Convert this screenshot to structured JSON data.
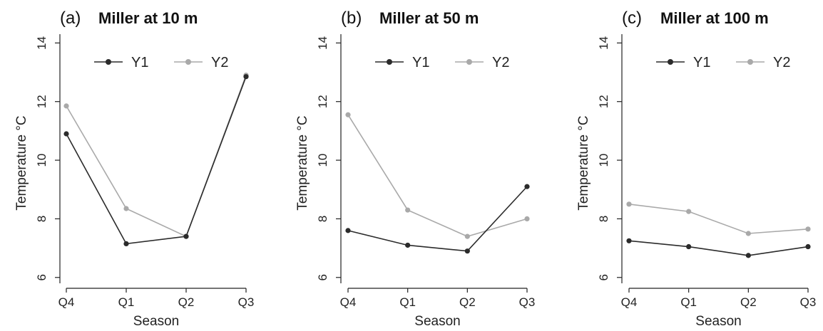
{
  "chart_data": [
    {
      "type": "line",
      "panel_label": "(a)",
      "title": "Miller at 10 m",
      "xlabel": "Season",
      "ylabel": "Temperature °C",
      "categories": [
        "Q4",
        "Q1",
        "Q2",
        "Q3"
      ],
      "ylim": [
        5.8,
        14.3
      ],
      "yticks": [
        6,
        8,
        10,
        12,
        14
      ],
      "legend_position": "top",
      "series": [
        {
          "name": "Y1",
          "color": "#2b2b2b",
          "values": [
            10.9,
            7.15,
            7.4,
            12.85
          ]
        },
        {
          "name": "Y2",
          "color": "#a9a9a9",
          "values": [
            11.85,
            8.35,
            7.4,
            12.9
          ]
        }
      ]
    },
    {
      "type": "line",
      "panel_label": "(b)",
      "title": "Miller at 50 m",
      "xlabel": "Season",
      "ylabel": "Temperature °C",
      "categories": [
        "Q4",
        "Q1",
        "Q2",
        "Q3"
      ],
      "ylim": [
        5.8,
        14.3
      ],
      "yticks": [
        6,
        8,
        10,
        12,
        14
      ],
      "legend_position": "top",
      "series": [
        {
          "name": "Y1",
          "color": "#2b2b2b",
          "values": [
            7.6,
            7.1,
            6.9,
            9.1
          ]
        },
        {
          "name": "Y2",
          "color": "#a9a9a9",
          "values": [
            11.55,
            8.3,
            7.4,
            8.0
          ]
        }
      ]
    },
    {
      "type": "line",
      "panel_label": "(c)",
      "title": "Miller at 100 m",
      "xlabel": "Season",
      "ylabel": "Temperature °C",
      "categories": [
        "Q4",
        "Q1",
        "Q2",
        "Q3"
      ],
      "ylim": [
        5.8,
        14.3
      ],
      "yticks": [
        6,
        8,
        10,
        12,
        14
      ],
      "legend_position": "top",
      "series": [
        {
          "name": "Y1",
          "color": "#2b2b2b",
          "values": [
            7.25,
            7.05,
            6.75,
            7.05
          ]
        },
        {
          "name": "Y2",
          "color": "#a9a9a9",
          "values": [
            8.5,
            8.25,
            7.5,
            7.65
          ]
        }
      ]
    }
  ]
}
